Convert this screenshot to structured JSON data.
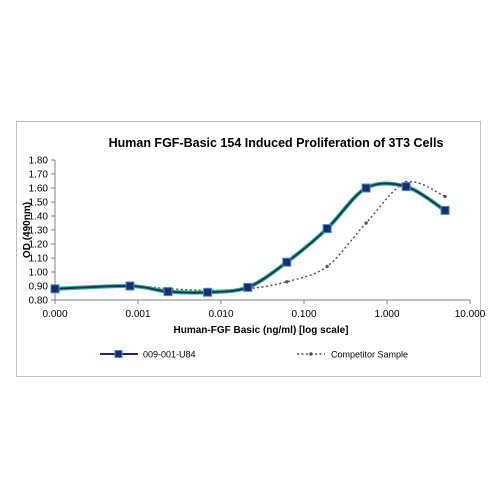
{
  "chart_data": {
    "type": "line",
    "title": "Human FGF-Basic 154 Induced Proliferation of 3T3 Cells",
    "xlabel": "Human-FGF Basic (ng/ml) [log scale]",
    "ylabel": "OD (490nm)",
    "x_scale": "log",
    "x_tick_labels": [
      "0.000",
      "0.001",
      "0.010",
      "0.100",
      "1.000",
      "10.000"
    ],
    "y_tick_labels": [
      "0.80",
      "0.90",
      "1.00",
      "1.10",
      "1.20",
      "1.30",
      "1.40",
      "1.50",
      "1.60",
      "1.70",
      "1.80"
    ],
    "ylim": [
      0.8,
      1.8
    ],
    "grid": false,
    "legend_position": "bottom",
    "series": [
      {
        "name": "009-001-U84",
        "color": "#1f2a6b",
        "outline_color": "#2db37a",
        "marker": "square",
        "line_style": "solid",
        "x": [
          0.0001,
          0.0008,
          0.0023,
          0.0069,
          0.021,
          0.062,
          0.19,
          0.56,
          1.7,
          5.0
        ],
        "y": [
          0.88,
          0.9,
          0.86,
          0.855,
          0.89,
          1.07,
          1.31,
          1.6,
          1.61,
          1.44
        ]
      },
      {
        "name": "Competitor Sample",
        "color": "#555555",
        "marker": "dot",
        "line_style": "dotted",
        "x": [
          0.0001,
          0.0008,
          0.0023,
          0.0069,
          0.021,
          0.062,
          0.19,
          0.56,
          1.7,
          5.0
        ],
        "y": [
          0.87,
          0.9,
          0.88,
          0.87,
          0.88,
          0.93,
          1.04,
          1.35,
          1.64,
          1.54
        ]
      }
    ]
  }
}
